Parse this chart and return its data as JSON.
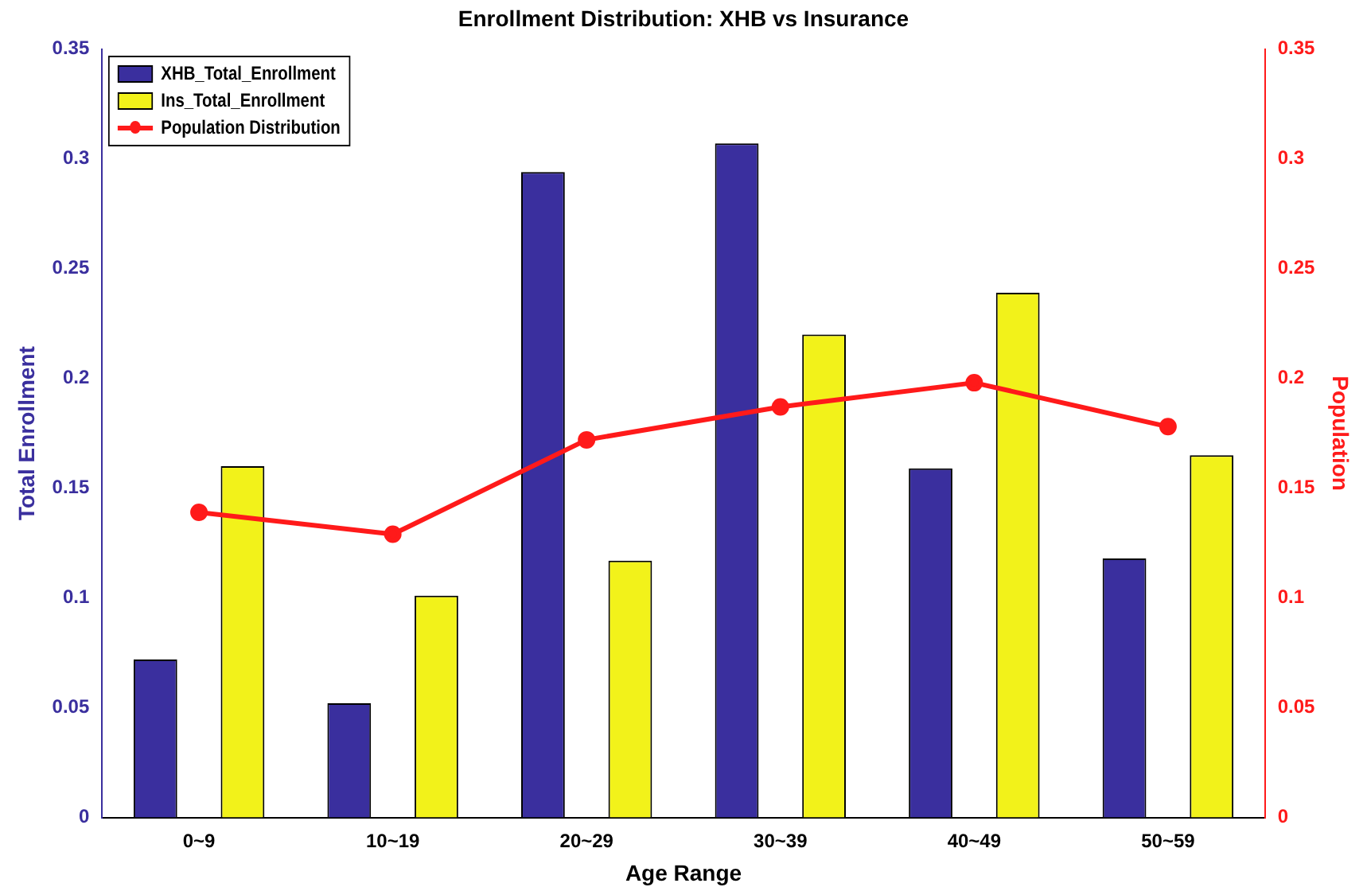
{
  "chart_data": {
    "type": "bar",
    "title": "Enrollment Distribution: XHB vs Insurance",
    "xlabel": "Age Range",
    "ylabel": "Total Enrollment",
    "y2label": "Population",
    "categories": [
      "0~9",
      "10~19",
      "20~29",
      "30~39",
      "40~49",
      "50~59"
    ],
    "series": [
      {
        "name": "XHB_Total_Enrollment",
        "color": "#3a2f9e",
        "values": [
          0.072,
          0.052,
          0.294,
          0.307,
          0.159,
          0.118
        ]
      },
      {
        "name": "Ins_Total_Enrollment",
        "color": "#f2f21a",
        "values": [
          0.16,
          0.101,
          0.117,
          0.22,
          0.239,
          0.165
        ]
      },
      {
        "name": "Population Distribution",
        "type": "line",
        "axis": "y2",
        "color": "#ff1a1a",
        "values": [
          0.139,
          0.129,
          0.172,
          0.187,
          0.198,
          0.178
        ]
      }
    ],
    "ylim": [
      0,
      0.35
    ],
    "yticks": [
      0,
      0.05,
      0.1,
      0.15,
      0.2,
      0.25,
      0.3,
      0.35
    ],
    "y2lim": [
      0,
      0.35
    ],
    "y2ticks": [
      0,
      0.05,
      0.1,
      0.15,
      0.2,
      0.25,
      0.3,
      0.35
    ],
    "grid": false,
    "legend": "top left",
    "marker": "circle",
    "line_style": "solid"
  }
}
